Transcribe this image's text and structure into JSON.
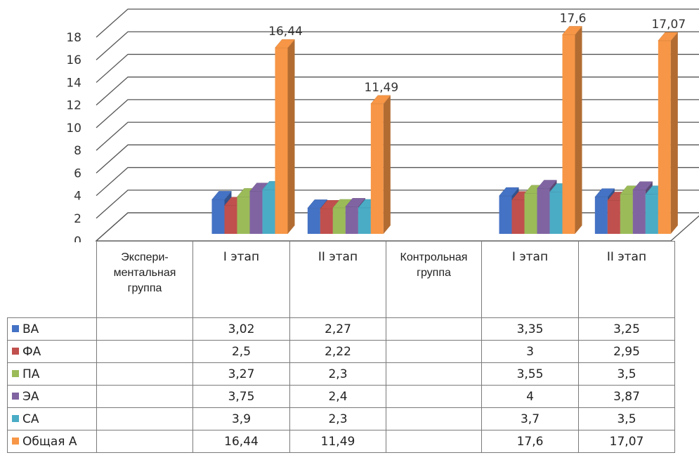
{
  "chart_data": {
    "type": "bar",
    "y_ticks": [
      "0",
      "2",
      "4",
      "6",
      "8",
      "10",
      "12",
      "14",
      "16",
      "18"
    ],
    "ylim": [
      0,
      18
    ],
    "grid": true,
    "categories": [
      "Экспери-\nментальная\nгруппа",
      "I этап",
      "II этап",
      "Контрольная\nгруппа",
      "I этап",
      "II этап"
    ],
    "series": [
      {
        "name": "ВА",
        "color": "#4472C4",
        "values": [
          null,
          3.02,
          2.27,
          null,
          3.35,
          3.25
        ],
        "labels": [
          "",
          "3,02",
          "2,27",
          "",
          "3,35",
          "3,25"
        ]
      },
      {
        "name": "ФА",
        "color": "#C0504D",
        "values": [
          null,
          2.5,
          2.22,
          null,
          3,
          2.95
        ],
        "labels": [
          "",
          "2,5",
          "2,22",
          "",
          "3",
          "2,95"
        ]
      },
      {
        "name": "ПА",
        "color": "#9BBB59",
        "values": [
          null,
          3.27,
          2.3,
          null,
          3.55,
          3.5
        ],
        "labels": [
          "",
          "3,27",
          "2,3",
          "",
          "3,55",
          "3,5"
        ]
      },
      {
        "name": "ЭА",
        "color": "#8064A2",
        "values": [
          null,
          3.75,
          2.4,
          null,
          4,
          3.87
        ],
        "labels": [
          "",
          "3,75",
          "2,4",
          "",
          "4",
          "3,87"
        ]
      },
      {
        "name": "СА",
        "color": "#4BACC6",
        "values": [
          null,
          3.9,
          2.3,
          null,
          3.7,
          3.5
        ],
        "labels": [
          "",
          "3,9",
          "2,3",
          "",
          "3,7",
          "3,5"
        ]
      },
      {
        "name": "Общая А",
        "color": "#F79646",
        "values": [
          null,
          16.44,
          11.49,
          null,
          17.6,
          17.07
        ],
        "labels": [
          "",
          "16,44",
          "11,49",
          "",
          "17,6",
          "17,07"
        ]
      }
    ],
    "data_labels": [
      "16,44",
      "11,49",
      "17,6",
      "17,07"
    ],
    "legend": "table-left"
  }
}
